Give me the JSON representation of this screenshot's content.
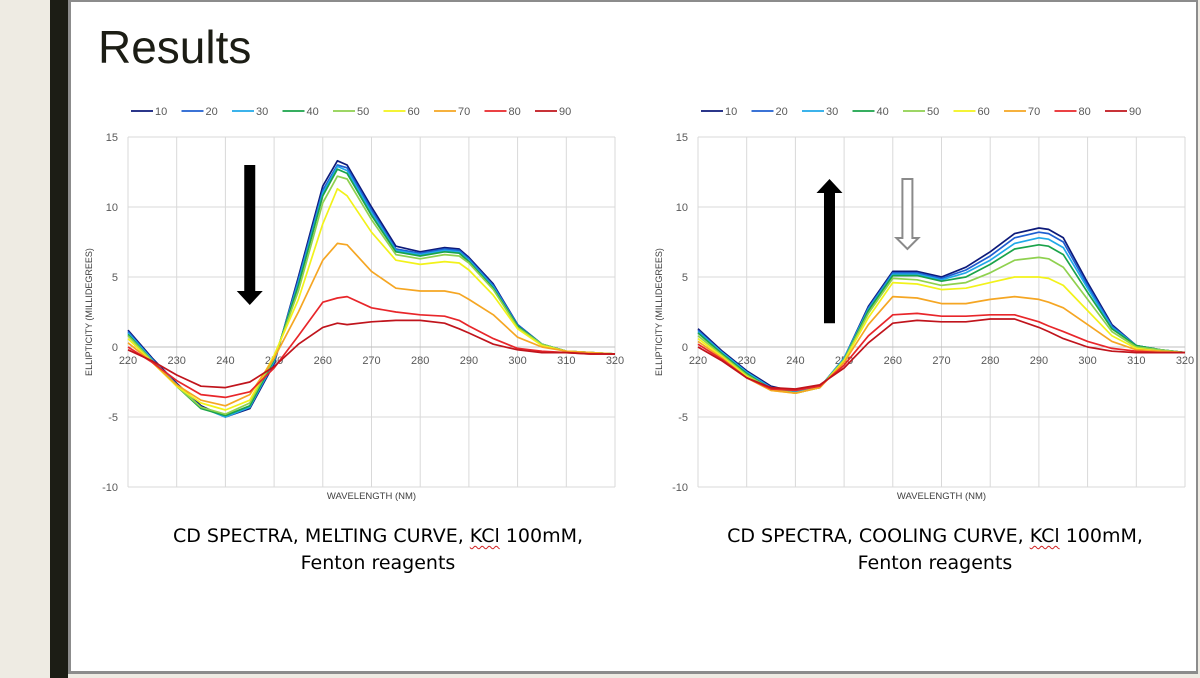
{
  "slide": {
    "title": "Results",
    "captions": [
      {
        "line1_pre": "CD SPECTRA, MELTING CURVE, ",
        "kcl": "KCl",
        "line1_post": " 100mM,",
        "line2": "Fenton reagents"
      },
      {
        "line1_pre": "CD SPECTRA, COOLING CURVE, ",
        "kcl": "KCl",
        "line1_post": " 100mM,",
        "line2": "Fenton reagents"
      }
    ]
  },
  "colors": {
    "series": [
      "#0d1a7a",
      "#1f5fd1",
      "#20a8e8",
      "#1aa34a",
      "#8fd14f",
      "#f2f21a",
      "#f5a623",
      "#e8262a",
      "#c0141c"
    ],
    "arrow": "#000000",
    "hollow_arrow": "#8a8a8a"
  },
  "chart_data": [
    {
      "type": "line",
      "xlabel": "WAVELENGTH (NM)",
      "ylabel": "ELLIPTICITY (MILLIDEGREES)",
      "xlim": [
        220,
        320
      ],
      "ylim": [
        -10,
        15
      ],
      "xticks": [
        220,
        230,
        240,
        250,
        260,
        270,
        280,
        290,
        300,
        310,
        320
      ],
      "yticks": [
        -10,
        -5,
        0,
        5,
        10,
        15
      ],
      "grid": true,
      "legend": "top",
      "arrows": [
        {
          "style": "solid",
          "direction": "down",
          "x": 245,
          "y_from": 13,
          "y_to": 3
        }
      ],
      "series": [
        {
          "name": "10",
          "x": [
            220,
            225,
            230,
            235,
            240,
            245,
            250,
            255,
            260,
            263,
            265,
            270,
            275,
            280,
            285,
            288,
            290,
            295,
            300,
            305,
            310,
            315,
            320
          ],
          "y": [
            1.2,
            -0.8,
            -2.6,
            -4.2,
            -5.0,
            -4.4,
            -1.2,
            5.0,
            11.5,
            13.3,
            13.0,
            10.0,
            7.2,
            6.8,
            7.1,
            7.0,
            6.4,
            4.5,
            1.6,
            0.2,
            -0.3,
            -0.4,
            -0.5
          ]
        },
        {
          "name": "20",
          "x": [
            220,
            225,
            230,
            235,
            240,
            245,
            250,
            255,
            260,
            263,
            265,
            270,
            275,
            280,
            285,
            288,
            290,
            295,
            300,
            305,
            310,
            315,
            320
          ],
          "y": [
            1.1,
            -0.9,
            -2.7,
            -4.3,
            -5.0,
            -4.3,
            -1.1,
            4.8,
            11.2,
            13.0,
            12.8,
            9.8,
            7.0,
            6.7,
            7.0,
            6.9,
            6.3,
            4.4,
            1.6,
            0.2,
            -0.3,
            -0.4,
            -0.5
          ]
        },
        {
          "name": "30",
          "x": [
            220,
            225,
            230,
            235,
            240,
            245,
            250,
            255,
            260,
            263,
            265,
            270,
            275,
            280,
            285,
            288,
            290,
            295,
            300,
            305,
            310,
            315,
            320
          ],
          "y": [
            1.0,
            -0.9,
            -2.7,
            -4.3,
            -5.0,
            -4.3,
            -1.0,
            4.6,
            11.0,
            12.9,
            12.6,
            9.6,
            6.9,
            6.6,
            6.9,
            6.8,
            6.2,
            4.3,
            1.5,
            0.2,
            -0.3,
            -0.4,
            -0.5
          ]
        },
        {
          "name": "40",
          "x": [
            220,
            225,
            230,
            235,
            240,
            245,
            250,
            255,
            260,
            263,
            265,
            270,
            275,
            280,
            285,
            288,
            290,
            295,
            300,
            305,
            310,
            315,
            320
          ],
          "y": [
            0.9,
            -1.0,
            -2.8,
            -4.4,
            -4.9,
            -4.2,
            -0.9,
            4.4,
            10.8,
            12.7,
            12.4,
            9.4,
            6.8,
            6.5,
            6.8,
            6.7,
            6.1,
            4.2,
            1.5,
            0.2,
            -0.3,
            -0.4,
            -0.5
          ]
        },
        {
          "name": "50",
          "x": [
            220,
            225,
            230,
            235,
            240,
            245,
            250,
            255,
            260,
            263,
            265,
            270,
            275,
            280,
            285,
            288,
            290,
            295,
            300,
            305,
            310,
            315,
            320
          ],
          "y": [
            0.8,
            -1.0,
            -2.8,
            -4.3,
            -4.8,
            -4.0,
            -0.8,
            4.0,
            10.3,
            12.2,
            12.0,
            9.1,
            6.6,
            6.3,
            6.6,
            6.5,
            6.0,
            4.1,
            1.4,
            0.2,
            -0.3,
            -0.4,
            -0.5
          ]
        },
        {
          "name": "60",
          "x": [
            220,
            225,
            230,
            235,
            240,
            245,
            250,
            255,
            260,
            263,
            265,
            270,
            275,
            280,
            285,
            288,
            290,
            295,
            300,
            305,
            310,
            315,
            320
          ],
          "y": [
            0.6,
            -1.1,
            -2.8,
            -4.0,
            -4.5,
            -3.8,
            -0.6,
            3.4,
            8.8,
            11.3,
            10.8,
            8.2,
            6.2,
            5.9,
            6.1,
            6.0,
            5.5,
            3.7,
            1.3,
            0.1,
            -0.3,
            -0.4,
            -0.5
          ]
        },
        {
          "name": "70",
          "x": [
            220,
            225,
            230,
            235,
            240,
            245,
            250,
            255,
            260,
            263,
            265,
            270,
            275,
            280,
            285,
            288,
            290,
            295,
            300,
            305,
            310,
            315,
            320
          ],
          "y": [
            0.3,
            -1.1,
            -2.7,
            -3.8,
            -4.2,
            -3.4,
            -0.8,
            2.5,
            6.2,
            7.4,
            7.3,
            5.4,
            4.2,
            4.0,
            4.0,
            3.8,
            3.4,
            2.3,
            0.7,
            0.0,
            -0.3,
            -0.4,
            -0.5
          ]
        },
        {
          "name": "80",
          "x": [
            220,
            225,
            230,
            235,
            240,
            245,
            250,
            255,
            260,
            263,
            265,
            270,
            275,
            280,
            285,
            288,
            290,
            295,
            300,
            305,
            310,
            315,
            320
          ],
          "y": [
            0.0,
            -1.1,
            -2.4,
            -3.4,
            -3.6,
            -3.2,
            -1.5,
            0.8,
            3.2,
            3.5,
            3.6,
            2.8,
            2.5,
            2.3,
            2.2,
            1.9,
            1.5,
            0.6,
            -0.1,
            -0.3,
            -0.4,
            -0.5,
            -0.5
          ]
        },
        {
          "name": "90",
          "x": [
            220,
            225,
            230,
            235,
            240,
            245,
            250,
            255,
            260,
            263,
            265,
            270,
            275,
            280,
            285,
            288,
            290,
            295,
            300,
            305,
            310,
            315,
            320
          ],
          "y": [
            -0.2,
            -1.0,
            -2.0,
            -2.8,
            -2.9,
            -2.5,
            -1.4,
            0.2,
            1.4,
            1.7,
            1.6,
            1.8,
            1.9,
            1.9,
            1.7,
            1.3,
            1.0,
            0.2,
            -0.2,
            -0.4,
            -0.4,
            -0.5,
            -0.5
          ]
        }
      ]
    },
    {
      "type": "line",
      "xlabel": "WAVELENGTH (NM)",
      "ylabel": "ELLIPTICITY (MILLIDEGREES)",
      "xlim": [
        220,
        320
      ],
      "ylim": [
        -10,
        15
      ],
      "xticks": [
        220,
        230,
        240,
        250,
        260,
        270,
        280,
        290,
        300,
        310,
        320
      ],
      "yticks": [
        -10,
        -5,
        0,
        5,
        10,
        15
      ],
      "grid": true,
      "legend": "top",
      "arrows": [
        {
          "style": "solid",
          "direction": "up",
          "x": 247,
          "y_from": 1.7,
          "y_to": 12
        },
        {
          "style": "hollow",
          "direction": "down",
          "x": 263,
          "y_from": 12,
          "y_to": 7
        }
      ],
      "series": [
        {
          "name": "10",
          "x": [
            220,
            225,
            230,
            235,
            240,
            245,
            250,
            255,
            260,
            265,
            270,
            275,
            280,
            285,
            290,
            292,
            295,
            300,
            305,
            310,
            315,
            320
          ],
          "y": [
            1.3,
            -0.3,
            -1.7,
            -2.8,
            -3.2,
            -2.9,
            -0.8,
            2.9,
            5.4,
            5.4,
            5.0,
            5.7,
            6.8,
            8.1,
            8.5,
            8.4,
            7.8,
            4.6,
            1.6,
            0.1,
            -0.2,
            -0.4
          ]
        },
        {
          "name": "20",
          "x": [
            220,
            225,
            230,
            235,
            240,
            245,
            250,
            255,
            260,
            265,
            270,
            275,
            280,
            285,
            290,
            292,
            295,
            300,
            305,
            310,
            315,
            320
          ],
          "y": [
            1.2,
            -0.4,
            -1.8,
            -2.9,
            -3.2,
            -2.9,
            -0.8,
            2.8,
            5.3,
            5.3,
            4.9,
            5.5,
            6.5,
            7.8,
            8.2,
            8.1,
            7.5,
            4.4,
            1.5,
            0.1,
            -0.2,
            -0.4
          ]
        },
        {
          "name": "30",
          "x": [
            220,
            225,
            230,
            235,
            240,
            245,
            250,
            255,
            260,
            265,
            270,
            275,
            280,
            285,
            290,
            292,
            295,
            300,
            305,
            310,
            315,
            320
          ],
          "y": [
            1.1,
            -0.4,
            -1.8,
            -2.9,
            -3.2,
            -2.9,
            -0.8,
            2.7,
            5.2,
            5.2,
            4.8,
            5.3,
            6.2,
            7.4,
            7.8,
            7.7,
            7.1,
            4.2,
            1.4,
            0.1,
            -0.2,
            -0.4
          ]
        },
        {
          "name": "40",
          "x": [
            220,
            225,
            230,
            235,
            240,
            245,
            250,
            255,
            260,
            265,
            270,
            275,
            280,
            285,
            290,
            292,
            295,
            300,
            305,
            310,
            315,
            320
          ],
          "y": [
            1.0,
            -0.5,
            -1.9,
            -3.0,
            -3.3,
            -2.9,
            -0.9,
            2.6,
            5.1,
            5.1,
            4.7,
            5.0,
            5.9,
            7.0,
            7.3,
            7.2,
            6.6,
            3.9,
            1.3,
            0.1,
            -0.2,
            -0.4
          ]
        },
        {
          "name": "50",
          "x": [
            220,
            225,
            230,
            235,
            240,
            245,
            250,
            255,
            260,
            265,
            270,
            275,
            280,
            285,
            290,
            292,
            295,
            300,
            305,
            310,
            315,
            320
          ],
          "y": [
            0.8,
            -0.6,
            -2.0,
            -3.0,
            -3.3,
            -2.9,
            -0.9,
            2.4,
            4.9,
            4.8,
            4.4,
            4.6,
            5.3,
            6.2,
            6.4,
            6.3,
            5.7,
            3.4,
            1.1,
            0.0,
            -0.2,
            -0.4
          ]
        },
        {
          "name": "60",
          "x": [
            220,
            225,
            230,
            235,
            240,
            245,
            250,
            255,
            260,
            265,
            270,
            275,
            280,
            285,
            290,
            292,
            295,
            300,
            305,
            310,
            315,
            320
          ],
          "y": [
            0.6,
            -0.7,
            -2.1,
            -3.1,
            -3.3,
            -2.9,
            -1.0,
            2.1,
            4.6,
            4.5,
            4.1,
            4.2,
            4.6,
            5.0,
            5.0,
            4.9,
            4.4,
            2.6,
            0.8,
            -0.1,
            -0.3,
            -0.4
          ]
        },
        {
          "name": "70",
          "x": [
            220,
            225,
            230,
            235,
            240,
            245,
            250,
            255,
            260,
            265,
            270,
            275,
            280,
            285,
            290,
            292,
            295,
            300,
            305,
            310,
            315,
            320
          ],
          "y": [
            0.4,
            -0.8,
            -2.2,
            -3.1,
            -3.3,
            -2.9,
            -1.1,
            1.6,
            3.6,
            3.5,
            3.1,
            3.1,
            3.4,
            3.6,
            3.4,
            3.2,
            2.8,
            1.6,
            0.4,
            -0.2,
            -0.3,
            -0.4
          ]
        },
        {
          "name": "80",
          "x": [
            220,
            225,
            230,
            235,
            240,
            245,
            250,
            255,
            260,
            265,
            270,
            275,
            280,
            285,
            290,
            292,
            295,
            300,
            305,
            310,
            315,
            320
          ],
          "y": [
            0.2,
            -0.9,
            -2.2,
            -3.0,
            -3.1,
            -2.8,
            -1.3,
            0.8,
            2.3,
            2.4,
            2.2,
            2.2,
            2.3,
            2.3,
            1.8,
            1.5,
            1.1,
            0.4,
            -0.1,
            -0.3,
            -0.4,
            -0.4
          ]
        },
        {
          "name": "90",
          "x": [
            220,
            225,
            230,
            235,
            240,
            245,
            250,
            255,
            260,
            265,
            270,
            275,
            280,
            285,
            290,
            292,
            295,
            300,
            305,
            310,
            315,
            320
          ],
          "y": [
            0.0,
            -1.0,
            -2.2,
            -2.9,
            -3.0,
            -2.7,
            -1.5,
            0.3,
            1.7,
            1.9,
            1.8,
            1.8,
            2.0,
            2.0,
            1.4,
            1.1,
            0.6,
            0.0,
            -0.3,
            -0.4,
            -0.4,
            -0.4
          ]
        }
      ]
    }
  ]
}
